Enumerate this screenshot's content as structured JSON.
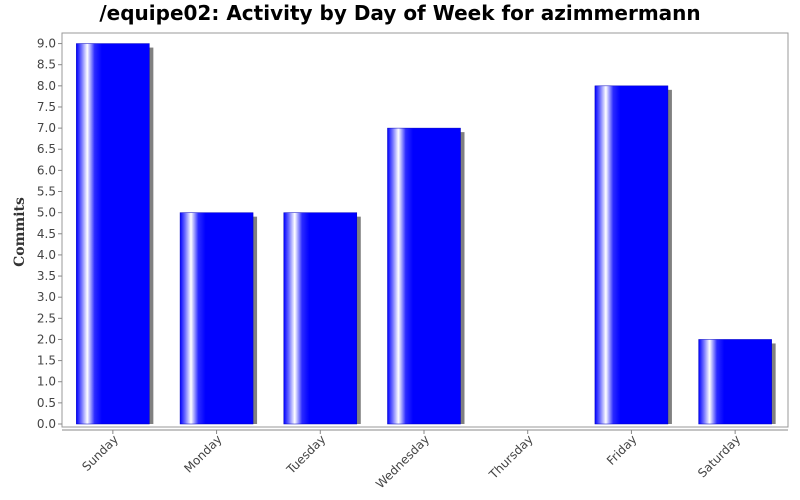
{
  "chart_data": {
    "type": "bar",
    "title": "/equipe02: Activity by Day of Week for azimmermann",
    "ylabel": "Commits",
    "xlabel": "",
    "categories": [
      "Sunday",
      "Monday",
      "Tuesday",
      "Wednesday",
      "Thursday",
      "Friday",
      "Saturday"
    ],
    "values": [
      9,
      5,
      5,
      7,
      0,
      8,
      2
    ],
    "ylim": [
      0,
      9.25
    ],
    "yticks": [
      "0.0",
      "0.5",
      "1.0",
      "1.5",
      "2.0",
      "2.5",
      "3.0",
      "3.5",
      "4.0",
      "4.5",
      "5.0",
      "5.5",
      "6.0",
      "6.5",
      "7.0",
      "7.5",
      "8.0",
      "8.5",
      "9.0"
    ],
    "bar_color": "#0000ff",
    "shadow_color": "#808080",
    "grid": false,
    "legend": "none"
  }
}
